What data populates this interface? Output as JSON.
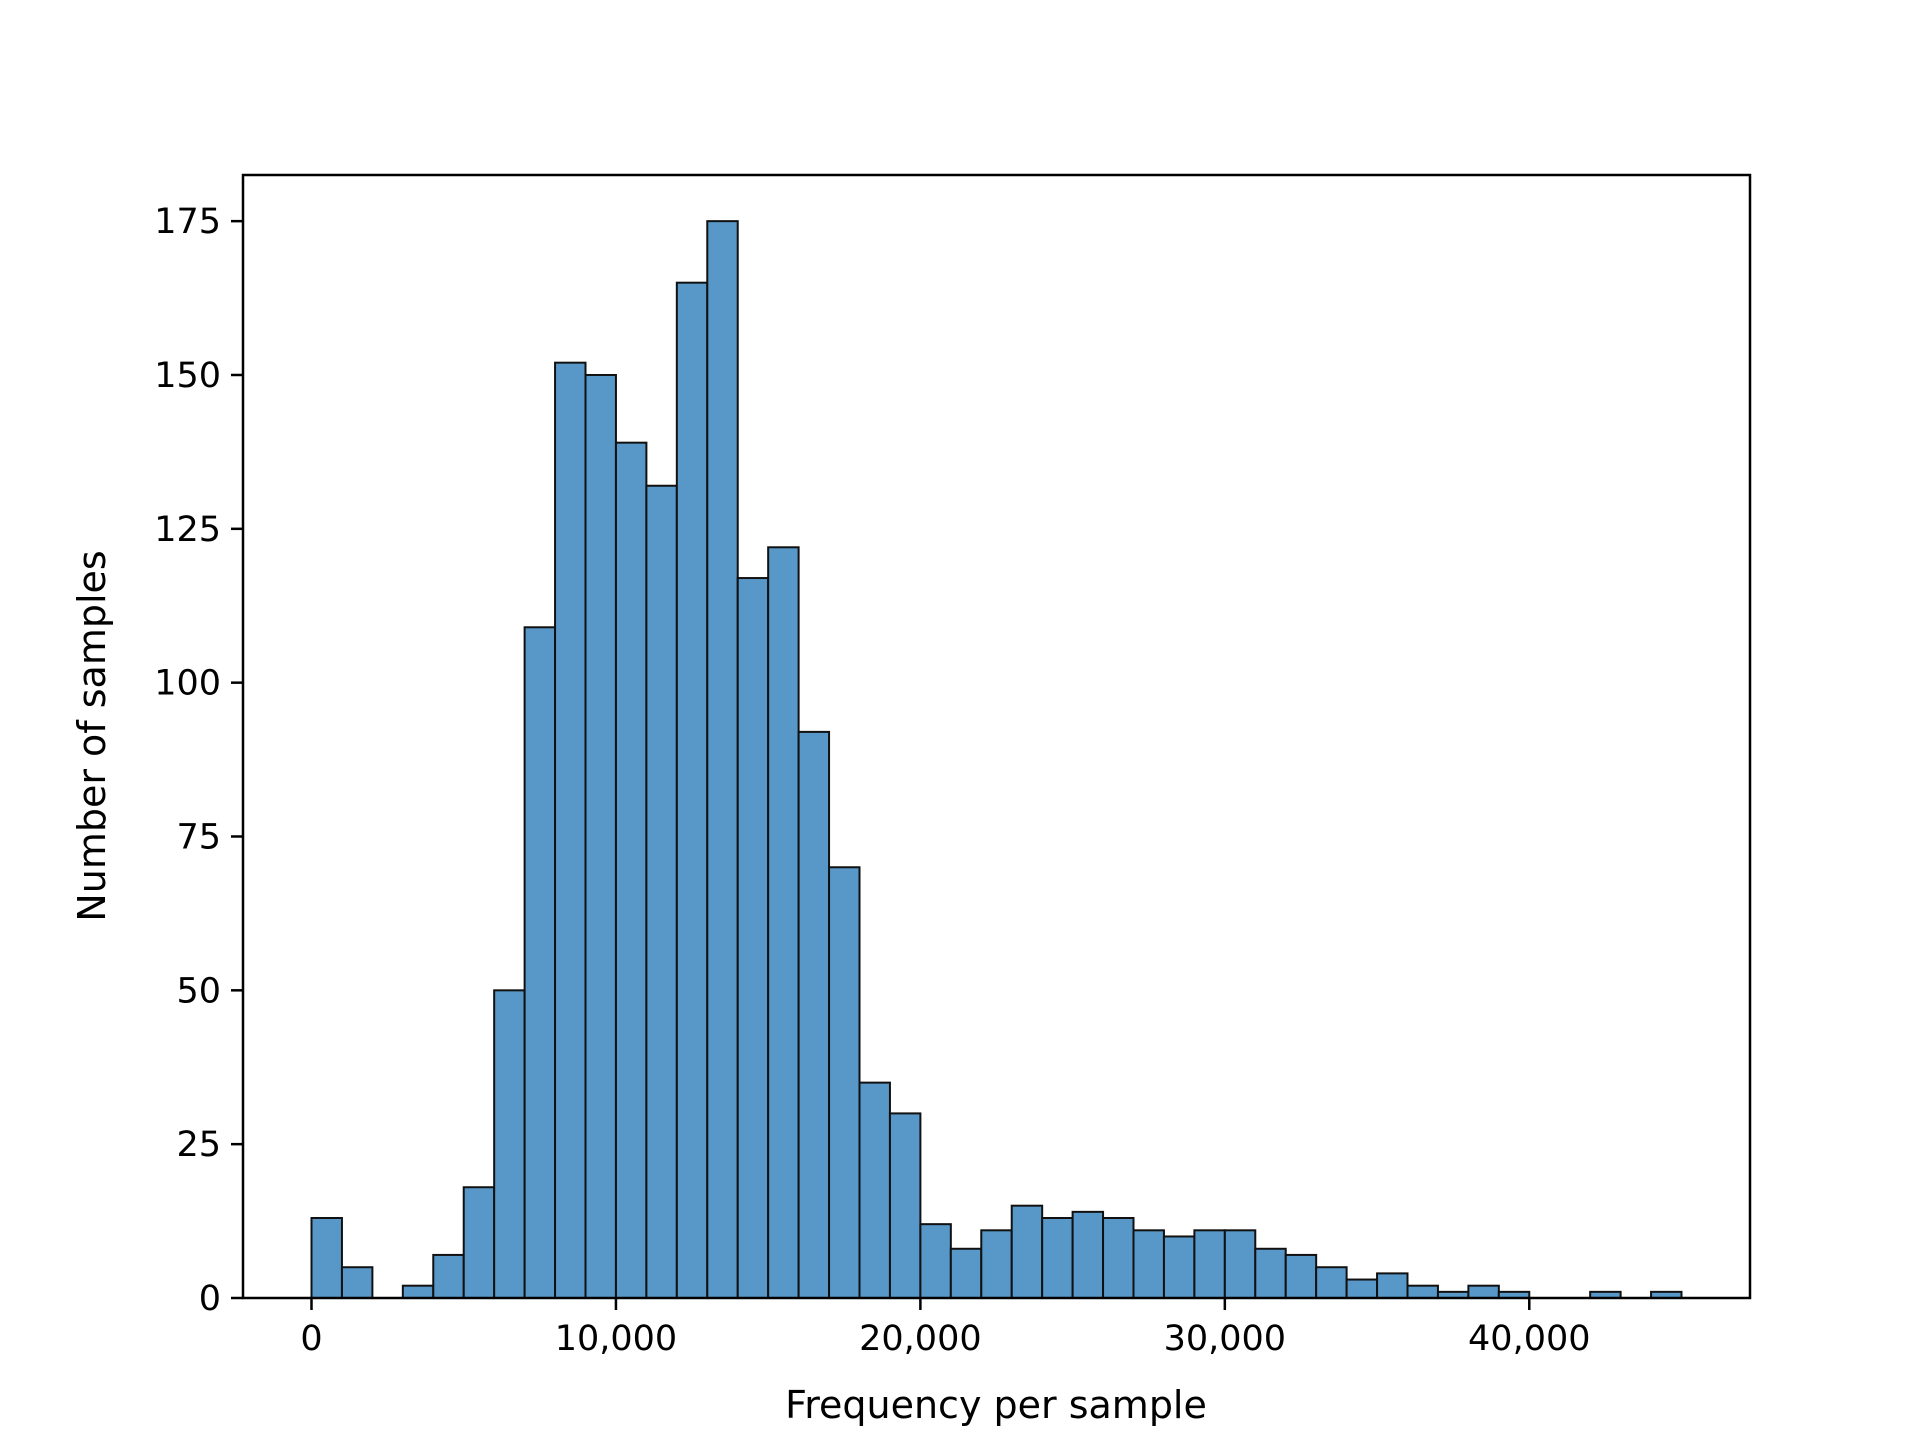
{
  "chart_data": {
    "type": "bar",
    "title": "",
    "xlabel": "Frequency per sample",
    "ylabel": "Number of samples",
    "xlim": [
      -2250,
      47250
    ],
    "ylim": [
      0,
      175
    ],
    "bin_width": 1000,
    "bin_starts": [
      0,
      1000,
      2000,
      3000,
      4000,
      5000,
      6000,
      7000,
      8000,
      9000,
      10000,
      11000,
      12000,
      13000,
      14000,
      15000,
      16000,
      17000,
      18000,
      19000,
      20000,
      21000,
      22000,
      23000,
      24000,
      25000,
      26000,
      27000,
      28000,
      29000,
      30000,
      31000,
      32000,
      33000,
      34000,
      35000,
      36000,
      37000,
      38000,
      39000,
      40000,
      41000,
      42000,
      43000,
      44000
    ],
    "values": [
      13,
      5,
      0,
      2,
      7,
      18,
      50,
      109,
      152,
      150,
      139,
      132,
      165,
      175,
      117,
      122,
      92,
      70,
      35,
      30,
      12,
      8,
      11,
      15,
      13,
      14,
      13,
      11,
      10,
      11,
      11,
      8,
      7,
      5,
      3,
      4,
      2,
      1,
      2,
      1,
      0,
      0,
      1,
      0,
      1
    ],
    "x_ticks": [
      {
        "value": 0,
        "label": "0"
      },
      {
        "value": 10000,
        "label": "10,000"
      },
      {
        "value": 20000,
        "label": "20,000"
      },
      {
        "value": 30000,
        "label": "30,000"
      },
      {
        "value": 40000,
        "label": "40,000"
      }
    ],
    "y_ticks": [
      {
        "value": 0,
        "label": "0"
      },
      {
        "value": 25,
        "label": "25"
      },
      {
        "value": 50,
        "label": "50"
      },
      {
        "value": 75,
        "label": "75"
      },
      {
        "value": 100,
        "label": "100"
      },
      {
        "value": 125,
        "label": "125"
      },
      {
        "value": 150,
        "label": "150"
      },
      {
        "value": 175,
        "label": "175"
      }
    ],
    "grid": false,
    "colors": {
      "bar_fill": "#5898c8",
      "bar_edge": "#111111",
      "axis": "#000000"
    }
  }
}
